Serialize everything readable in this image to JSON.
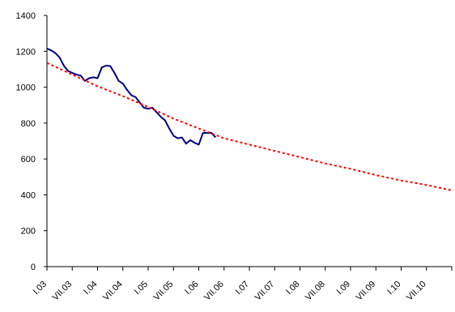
{
  "chart_data": {
    "type": "line",
    "title": "",
    "xlabel": "",
    "ylabel": "",
    "ylim": [
      0,
      1400
    ],
    "yticks": [
      0,
      200,
      400,
      600,
      800,
      1000,
      1200,
      1400
    ],
    "x_categories": [
      "I.03",
      "VII.03",
      "I.04",
      "VII.04",
      "I.05",
      "VII.05",
      "I.06",
      "VII.06",
      "I.07",
      "VII.07",
      "I.08",
      "VII.08",
      "I.09",
      "VII.09",
      "I.10",
      "VII.10"
    ],
    "x_start_month_index": 0,
    "total_months": 96,
    "grid": false,
    "legend": "none",
    "series": [
      {
        "style": "solid",
        "color": "#000080",
        "points": [
          [
            0,
            1215
          ],
          [
            1,
            1205
          ],
          [
            2,
            1190
          ],
          [
            3,
            1165
          ],
          [
            4,
            1120
          ],
          [
            5,
            1090
          ],
          [
            6,
            1080
          ],
          [
            7,
            1070
          ],
          [
            8,
            1065
          ],
          [
            9,
            1035
          ],
          [
            10,
            1050
          ],
          [
            11,
            1055
          ],
          [
            12,
            1050
          ],
          [
            13,
            1110
          ],
          [
            14,
            1120
          ],
          [
            15,
            1118
          ],
          [
            16,
            1080
          ],
          [
            17,
            1035
          ],
          [
            18,
            1020
          ],
          [
            19,
            985
          ],
          [
            20,
            955
          ],
          [
            21,
            945
          ],
          [
            22,
            915
          ],
          [
            23,
            885
          ],
          [
            24,
            880
          ],
          [
            25,
            885
          ],
          [
            26,
            860
          ],
          [
            27,
            835
          ],
          [
            28,
            815
          ],
          [
            29,
            770
          ],
          [
            30,
            730
          ],
          [
            31,
            715
          ],
          [
            32,
            720
          ],
          [
            33,
            685
          ],
          [
            34,
            705
          ],
          [
            35,
            690
          ],
          [
            36,
            680
          ],
          [
            37,
            745
          ],
          [
            38,
            745
          ],
          [
            39,
            745
          ],
          [
            40,
            720
          ]
        ]
      },
      {
        "style": "dashed",
        "color": "#ff0000",
        "points": [
          [
            0,
            1135
          ],
          [
            6,
            1070
          ],
          [
            12,
            1005
          ],
          [
            18,
            950
          ],
          [
            24,
            890
          ],
          [
            30,
            825
          ],
          [
            36,
            770
          ],
          [
            42,
            715
          ],
          [
            48,
            680
          ],
          [
            54,
            645
          ],
          [
            60,
            610
          ],
          [
            66,
            575
          ],
          [
            72,
            545
          ],
          [
            78,
            510
          ],
          [
            84,
            480
          ],
          [
            90,
            455
          ],
          [
            96,
            425
          ]
        ]
      }
    ]
  }
}
